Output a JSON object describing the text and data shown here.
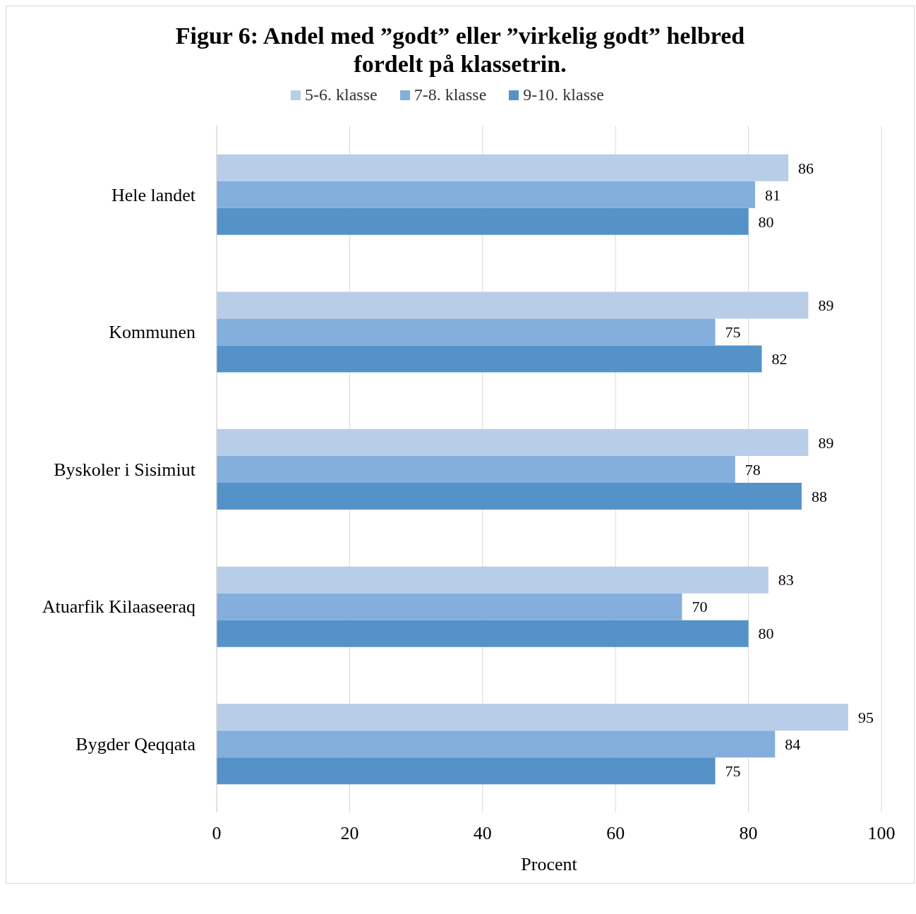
{
  "chart_data": {
    "type": "bar",
    "orientation": "horizontal",
    "title": "Figur 6: Andel med ”godt” eller ”virkelig godt” helbred fordelt på klassetrin.",
    "categories": [
      "Hele landet",
      "Kommunen",
      "Byskoler i Sisimiut",
      "Atuarfik Kilaaseeraq",
      "Bygder Qeqqata"
    ],
    "series": [
      {
        "name": "5-6. klasse",
        "color": "#b8cde8",
        "values": [
          86,
          89,
          89,
          83,
          95
        ]
      },
      {
        "name": "7-8. klasse",
        "color": "#84aedc",
        "values": [
          81,
          75,
          78,
          70,
          84
        ]
      },
      {
        "name": "9-10. klasse",
        "color": "#5592c8",
        "values": [
          80,
          82,
          88,
          80,
          75
        ]
      }
    ],
    "xlabel": "Procent",
    "xlim": [
      0,
      100
    ],
    "xticks": [
      0,
      20,
      40,
      60,
      80,
      100
    ],
    "grid": "x",
    "legend": "top",
    "data_labels": true
  }
}
